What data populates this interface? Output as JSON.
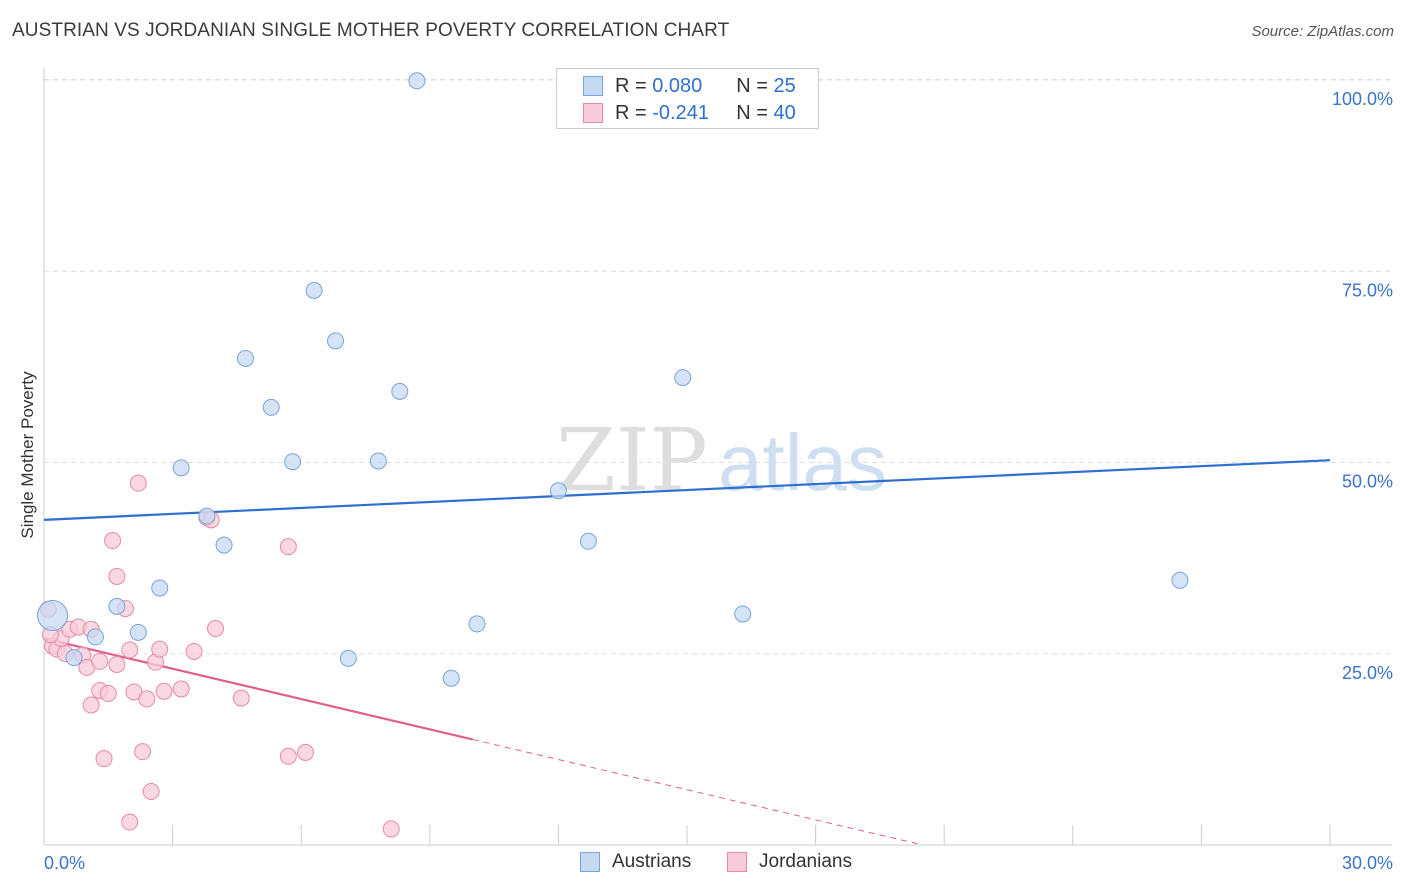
{
  "title": "AUSTRIAN VS JORDANIAN SINGLE MOTHER POVERTY CORRELATION CHART",
  "source": "Source: ZipAtlas.com",
  "watermark": {
    "zip": "ZIP",
    "atlas": "atlas"
  },
  "legend_top": {
    "rows": [
      {
        "r_label": "R =",
        "r_value": "0.080",
        "n_label": "N =",
        "n_value": "25"
      },
      {
        "r_label": "R =",
        "r_value": "-0.241",
        "n_label": "N =",
        "n_value": "40"
      }
    ]
  },
  "colors": {
    "austrians_fill": "#c5d9f3",
    "austrians_stroke": "#7aa3d8",
    "austrians_line": "#2f6fcf",
    "jordanians_fill": "#f8cbd8",
    "jordanians_stroke": "#e68aa8",
    "jordanians_line": "#e0608c",
    "tick_label": "#3a74c9"
  },
  "chart_data": {
    "type": "scatter",
    "xlabel": "",
    "ylabel": "Single Mother Poverty",
    "xlim": [
      0,
      30
    ],
    "ylim": [
      0,
      100
    ],
    "x_tick_labels": [
      "0.0%",
      "30.0%"
    ],
    "y_tick_values": [
      25,
      50,
      75,
      100
    ],
    "y_tick_labels": [
      "25.0%",
      "50.0%",
      "75.0%",
      "100.0%"
    ],
    "legend_position": "bottom-center",
    "grid": true,
    "series": [
      {
        "name": "Austrians",
        "r": 0.08,
        "n": 25,
        "trend": {
          "x": [
            0,
            30
          ],
          "y": [
            42.5,
            50.3
          ]
        },
        "points": [
          {
            "x": 0.2,
            "y": 30.0,
            "big": true
          },
          {
            "x": 0.7,
            "y": 24.5
          },
          {
            "x": 1.2,
            "y": 27.2
          },
          {
            "x": 1.7,
            "y": 31.2
          },
          {
            "x": 2.2,
            "y": 27.8
          },
          {
            "x": 2.7,
            "y": 33.6
          },
          {
            "x": 3.2,
            "y": 49.3
          },
          {
            "x": 3.8,
            "y": 43.0
          },
          {
            "x": 4.2,
            "y": 39.2
          },
          {
            "x": 4.7,
            "y": 63.6
          },
          {
            "x": 5.3,
            "y": 57.2
          },
          {
            "x": 5.8,
            "y": 50.1
          },
          {
            "x": 6.3,
            "y": 72.5
          },
          {
            "x": 6.8,
            "y": 65.9
          },
          {
            "x": 7.1,
            "y": 24.4
          },
          {
            "x": 7.8,
            "y": 50.2
          },
          {
            "x": 8.3,
            "y": 59.3
          },
          {
            "x": 8.7,
            "y": 99.9
          },
          {
            "x": 9.5,
            "y": 21.8
          },
          {
            "x": 10.1,
            "y": 28.9
          },
          {
            "x": 12.0,
            "y": 46.3
          },
          {
            "x": 12.7,
            "y": 39.7
          },
          {
            "x": 14.9,
            "y": 61.1
          },
          {
            "x": 16.3,
            "y": 30.2
          },
          {
            "x": 26.5,
            "y": 34.6
          }
        ]
      },
      {
        "name": "Jordanians",
        "r": -0.241,
        "n": 40,
        "trend": {
          "x": [
            0,
            10
          ],
          "y": [
            27.0,
            13.8
          ]
        },
        "trend_dashed": {
          "x": [
            10,
            20.5
          ],
          "y": [
            13.8,
            0
          ]
        },
        "points": [
          {
            "x": 0.1,
            "y": 30.8
          },
          {
            "x": 0.2,
            "y": 26.0
          },
          {
            "x": 0.3,
            "y": 25.6
          },
          {
            "x": 0.4,
            "y": 27.0
          },
          {
            "x": 0.5,
            "y": 25.0
          },
          {
            "x": 0.6,
            "y": 28.2
          },
          {
            "x": 0.8,
            "y": 28.5
          },
          {
            "x": 0.9,
            "y": 24.8
          },
          {
            "x": 1.0,
            "y": 23.2
          },
          {
            "x": 1.1,
            "y": 28.2
          },
          {
            "x": 1.1,
            "y": 18.3
          },
          {
            "x": 1.3,
            "y": 24.0
          },
          {
            "x": 1.3,
            "y": 20.2
          },
          {
            "x": 1.4,
            "y": 11.3
          },
          {
            "x": 1.5,
            "y": 19.8
          },
          {
            "x": 1.6,
            "y": 39.8
          },
          {
            "x": 1.7,
            "y": 23.6
          },
          {
            "x": 1.7,
            "y": 35.1
          },
          {
            "x": 1.9,
            "y": 30.9
          },
          {
            "x": 2.0,
            "y": 25.5
          },
          {
            "x": 2.0,
            "y": 3.0
          },
          {
            "x": 2.1,
            "y": 20.0
          },
          {
            "x": 2.2,
            "y": 47.3
          },
          {
            "x": 2.3,
            "y": 12.2
          },
          {
            "x": 2.4,
            "y": 19.1
          },
          {
            "x": 2.5,
            "y": 7.0
          },
          {
            "x": 2.6,
            "y": 23.9
          },
          {
            "x": 2.7,
            "y": 25.6
          },
          {
            "x": 2.8,
            "y": 20.1
          },
          {
            "x": 3.2,
            "y": 20.4
          },
          {
            "x": 3.5,
            "y": 25.3
          },
          {
            "x": 3.8,
            "y": 42.8
          },
          {
            "x": 3.9,
            "y": 42.5
          },
          {
            "x": 4.0,
            "y": 28.3
          },
          {
            "x": 4.6,
            "y": 19.2
          },
          {
            "x": 5.7,
            "y": 11.6
          },
          {
            "x": 5.7,
            "y": 39.0
          },
          {
            "x": 6.1,
            "y": 12.1
          },
          {
            "x": 8.1,
            "y": 2.1
          },
          {
            "x": 0.15,
            "y": 27.5
          }
        ]
      }
    ]
  }
}
